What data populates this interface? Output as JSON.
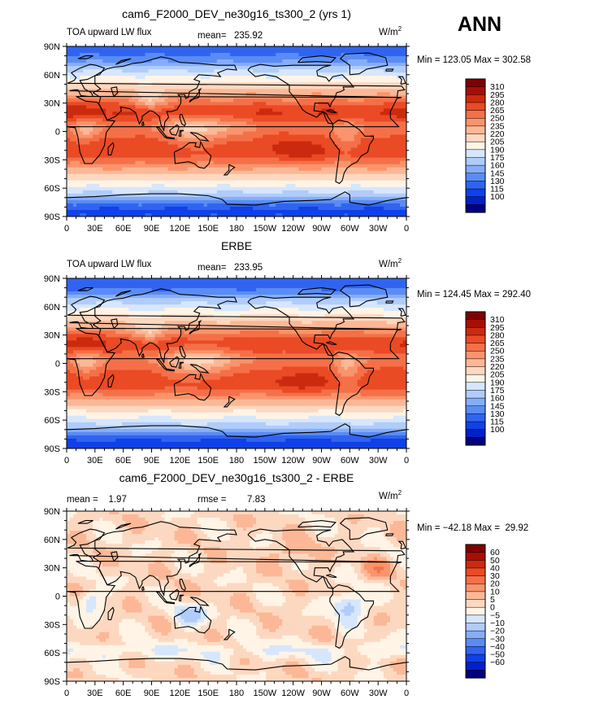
{
  "season": "ANN",
  "axes": {
    "lat_labels": [
      "90N",
      "60N",
      "30N",
      "0",
      "30S",
      "60S",
      "90S"
    ],
    "lon_labels": [
      "0",
      "30E",
      "60E",
      "90E",
      "120E",
      "150E",
      "180",
      "150W",
      "120W",
      "90W",
      "60W",
      "30W",
      "0"
    ]
  },
  "panels": [
    {
      "title": "cam6_F2000_DEV_ne30g16_ts300_2 (yrs 1)",
      "left_label": "TOA upward LW flux",
      "stat_label": "mean=",
      "stat_value": "235.92",
      "units": "W/m",
      "units_sup": "2",
      "minmax": "Min = 123.05 Max = 302.58",
      "colorbar_labels": [
        "310",
        "295",
        "280",
        "265",
        "250",
        "235",
        "220",
        "205",
        "190",
        "175",
        "160",
        "145",
        "130",
        "115",
        "100"
      ],
      "field": "model"
    },
    {
      "title": "ERBE",
      "left_label": "TOA upward LW flux",
      "stat_label": "mean=",
      "stat_value": "233.95",
      "units": "W/m",
      "units_sup": "2",
      "minmax": "Min = 124.45 Max = 292.40",
      "colorbar_labels": [
        "310",
        "295",
        "280",
        "265",
        "250",
        "235",
        "220",
        "205",
        "190",
        "175",
        "160",
        "145",
        "130",
        "115",
        "100"
      ],
      "field": "obs"
    },
    {
      "title": "cam6_F2000_DEV_ne30g16_ts300_2 - ERBE",
      "left_label": "mean =    1.97",
      "stat_label": "rmse =",
      "stat_value": "7.83",
      "units": "W/m",
      "units_sup": "2",
      "minmax": "Min = −42.18 Max =  29.92",
      "colorbar_labels": [
        "60",
        "50",
        "40",
        "30",
        "20",
        "10",
        "5",
        "0",
        "−5",
        "−10",
        "−20",
        "−30",
        "−40",
        "−50",
        "−60"
      ],
      "field": "diff"
    }
  ],
  "colors": {
    "abs_scale": [
      "#000080",
      "#0020c8",
      "#1040e8",
      "#3064f0",
      "#5a8cf5",
      "#86aef8",
      "#b0ccfa",
      "#d6e6fc",
      "#fff4e6",
      "#fdd8c0",
      "#fcb896",
      "#f9946c",
      "#f57048",
      "#ea4a24",
      "#cc2a0e",
      "#a80e04",
      "#800000"
    ],
    "diff_scale": [
      "#000080",
      "#0020c8",
      "#1040e8",
      "#3064f0",
      "#5a8cf5",
      "#86aef8",
      "#b0ccfa",
      "#d6e6fc",
      "#fff4e6",
      "#fdd8c0",
      "#fcb896",
      "#f9946c",
      "#f57048",
      "#ea4a24",
      "#cc2a0e",
      "#a80e04",
      "#800000"
    ]
  }
}
